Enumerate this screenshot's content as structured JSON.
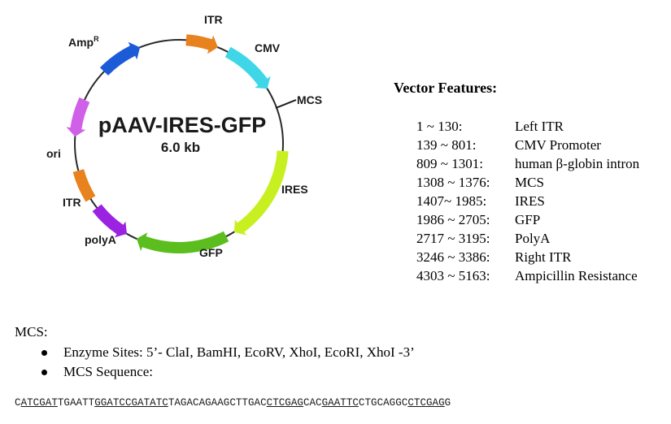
{
  "plasmid": {
    "name": "pAAV-IRES-GFP",
    "size": "6.0 kb",
    "elements": [
      {
        "label": "ITR",
        "color": "#E8821E",
        "direction": "cw"
      },
      {
        "label": "CMV",
        "color": "#3FD7E8",
        "direction": "cw"
      },
      {
        "label": "MCS",
        "color": "#1a1a1a",
        "direction": "tick"
      },
      {
        "label": "IRES",
        "color": "#C8F020",
        "direction": "cw"
      },
      {
        "label": "GFP",
        "color": "#5BBE1E",
        "direction": "cw"
      },
      {
        "label": "polyA",
        "color": "#9B22E0",
        "direction": "ccw"
      },
      {
        "label": "ITR",
        "color": "#E8821E",
        "direction": "none"
      },
      {
        "label": "ori",
        "color": "#D060E8",
        "direction": "ccw"
      },
      {
        "label": "Amp",
        "superscript": "R",
        "color": "#1C5BD8",
        "direction": "cw"
      }
    ]
  },
  "features": {
    "heading": "Vector Features:",
    "rows": [
      {
        "range": "1 ~ 130:",
        "name": "Left ITR"
      },
      {
        "range": "139 ~ 801:",
        "name": "CMV Promoter"
      },
      {
        "range": "809 ~ 1301:",
        "name": "human β-globin intron"
      },
      {
        "range": "1308 ~ 1376:",
        "name": "MCS"
      },
      {
        "range": "1407~ 1985:",
        "name": "IRES"
      },
      {
        "range": "1986 ~ 2705:",
        "name": "GFP"
      },
      {
        "range": "2717 ~ 3195:",
        "name": "PolyA"
      },
      {
        "range": "3246 ~ 3386:",
        "name": "Right ITR"
      },
      {
        "range": "4303 ~ 5163:",
        "name": "Ampicillin Resistance"
      }
    ]
  },
  "mcs": {
    "heading": "MCS:",
    "bullets": [
      "Enzyme Sites: 5’- ClaI, BamHI, EcoRV, XhoI, EcoRI, XhoI -3’",
      "MCS Sequence:"
    ],
    "sequence_segments": [
      {
        "text": "C",
        "underline": false
      },
      {
        "text": "ATCGAT",
        "underline": true
      },
      {
        "text": "TGAATT",
        "underline": false
      },
      {
        "text": "GGATCC",
        "underline": true
      },
      {
        "text": "GATATC",
        "underline": true
      },
      {
        "text": "TAGACAGAAGCTTGAC",
        "underline": false
      },
      {
        "text": "CTCGAG",
        "underline": true
      },
      {
        "text": "CAC",
        "underline": false
      },
      {
        "text": "GAATTC",
        "underline": true
      },
      {
        "text": "CTGCAGGC",
        "underline": false
      },
      {
        "text": "CTCGAG",
        "underline": true
      },
      {
        "text": "G",
        "underline": false
      }
    ]
  }
}
